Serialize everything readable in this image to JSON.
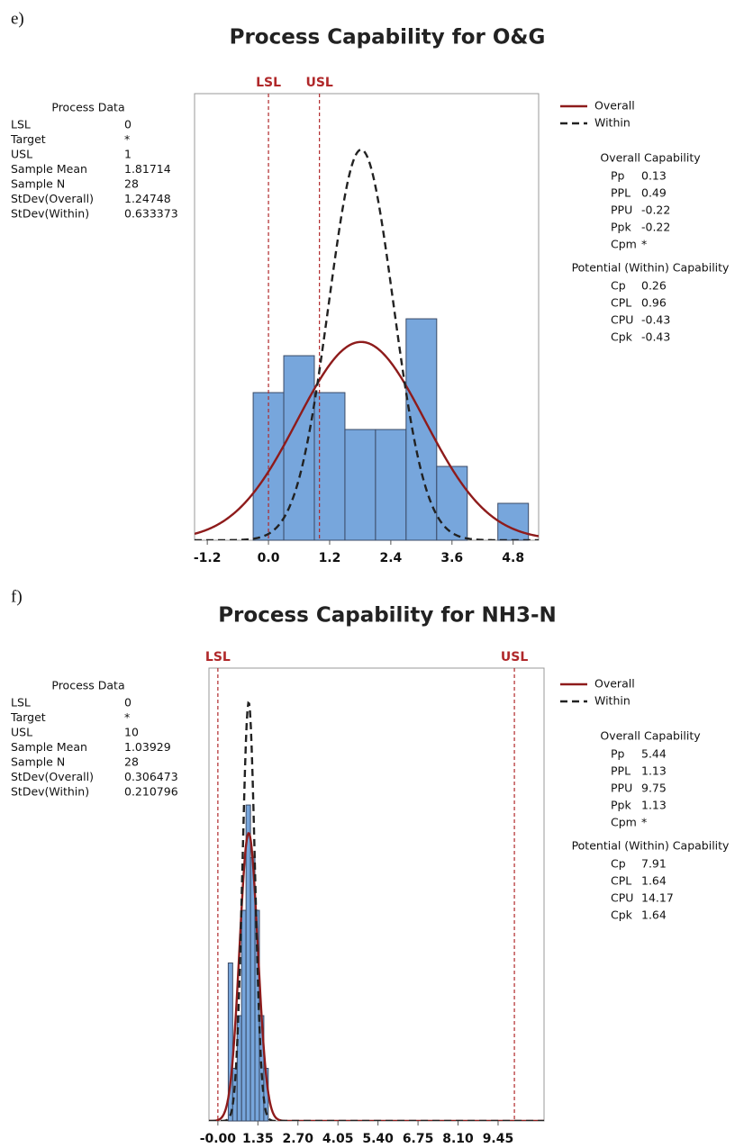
{
  "chart_data": [
    {
      "type": "histogram",
      "panel": "e)",
      "title": "Process Capability for O&G",
      "bins": [
        -0.3,
        0.3,
        0.9,
        1.5,
        2.1,
        2.7,
        3.3,
        3.9,
        4.5,
        5.1
      ],
      "counts": [
        4,
        5,
        4,
        3,
        3,
        6,
        2,
        0,
        1
      ],
      "color": "#77a6dc",
      "xlim": [
        -1.45,
        5.3
      ],
      "xticks": [
        -1.2,
        {
          "value": 0,
          "label": "0.0"
        },
        1.2,
        2.4,
        3.6,
        4.8
      ],
      "ylim": [
        0,
        12.1
      ],
      "spec_color": "#b0282a",
      "series": [
        {
          "name": "Overall",
          "color": "#8e1b1b",
          "style": "solid"
        },
        {
          "name": "Within",
          "color": "#222222",
          "style": "dashed"
        }
      ],
      "process_data": {
        "title": "Process Data",
        "rows": [
          {
            "label": "LSL",
            "value": 0
          },
          {
            "label": "Target",
            "value": "*"
          },
          {
            "label": "USL",
            "value": 1
          },
          {
            "label": "Sample Mean",
            "value": 1.81714
          },
          {
            "label": "Sample N",
            "value": 28
          },
          {
            "label": "StDev(Overall)",
            "value": 1.24748
          },
          {
            "label": "StDev(Within)",
            "value": 0.633373
          }
        ]
      },
      "overall_capability": {
        "title": "Overall Capability",
        "rows": [
          {
            "label": "Pp",
            "value": 0.13
          },
          {
            "label": "PPL",
            "value": 0.49
          },
          {
            "label": "PPU",
            "value": -0.22
          },
          {
            "label": "Ppk",
            "value": -0.22
          },
          {
            "label": "Cpm",
            "value": "*"
          }
        ]
      },
      "potential_capability": {
        "title": "Potential (Within) Capability",
        "rows": [
          {
            "label": "Cp",
            "value": 0.26
          },
          {
            "label": "CPL",
            "value": 0.96
          },
          {
            "label": "CPU",
            "value": -0.43
          },
          {
            "label": "Cpk",
            "value": -0.43
          }
        ]
      }
    },
    {
      "type": "histogram",
      "panel": "f)",
      "title": "Process Capability for NH3-N",
      "bins": [
        0.35,
        0.5,
        0.65,
        0.8,
        0.95,
        1.1,
        1.25,
        1.4,
        1.55,
        1.7
      ],
      "counts": [
        3,
        1,
        2,
        4,
        6,
        5,
        4,
        2,
        1
      ],
      "color": "#77a6dc",
      "xlim": [
        -0.3,
        11.0
      ],
      "xticks": [
        {
          "value": 0,
          "label": "-0.00"
        },
        1.35,
        {
          "value": 2.7,
          "label": "2.70"
        },
        4.05,
        {
          "value": 5.4,
          "label": "5.40"
        },
        6.75,
        {
          "value": 8.1,
          "label": "8.10"
        },
        9.45
      ],
      "ylim": [
        0,
        8.6
      ],
      "spec_color": "#b0282a",
      "series": [
        {
          "name": "Overall",
          "color": "#8e1b1b",
          "style": "solid"
        },
        {
          "name": "Within",
          "color": "#222222",
          "style": "dashed"
        }
      ],
      "process_data": {
        "title": "Process Data",
        "rows": [
          {
            "label": "LSL",
            "value": 0
          },
          {
            "label": "Target",
            "value": "*"
          },
          {
            "label": "USL",
            "value": 10
          },
          {
            "label": "Sample Mean",
            "value": 1.03929
          },
          {
            "label": "Sample N",
            "value": 28
          },
          {
            "label": "StDev(Overall)",
            "value": 0.306473
          },
          {
            "label": "StDev(Within)",
            "value": 0.210796
          }
        ]
      },
      "overall_capability": {
        "title": "Overall Capability",
        "rows": [
          {
            "label": "Pp",
            "value": 5.44
          },
          {
            "label": "PPL",
            "value": 1.13
          },
          {
            "label": "PPU",
            "value": 9.75
          },
          {
            "label": "Ppk",
            "value": 1.13
          },
          {
            "label": "Cpm",
            "value": "*"
          }
        ]
      },
      "potential_capability": {
        "title": "Potential (Within) Capability",
        "rows": [
          {
            "label": "Cp",
            "value": 7.91
          },
          {
            "label": "CPL",
            "value": 1.64
          },
          {
            "label": "CPU",
            "value": 14.17
          },
          {
            "label": "Cpk",
            "value": 1.64
          }
        ]
      }
    }
  ]
}
